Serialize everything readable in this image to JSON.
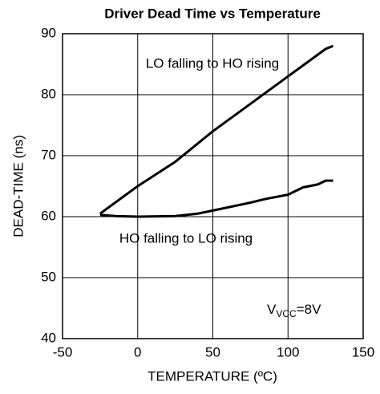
{
  "chart_data": {
    "type": "line",
    "title": "Driver Dead Time vs Temperature",
    "x_label": "TEMPERATURE (ºC)",
    "y_label": "DEAD-TIME (ns)",
    "xlim": [
      -50,
      150
    ],
    "xticks": [
      -50,
      0,
      50,
      100,
      150
    ],
    "ylim": [
      40,
      90
    ],
    "yticks": [
      40,
      50,
      60,
      70,
      80,
      90
    ],
    "grid": true,
    "series": [
      {
        "name": "LO falling to HO rising",
        "color": "#000000",
        "x": [
          -25,
          0,
          25,
          40,
          50,
          75,
          100,
          125,
          130
        ],
        "values": [
          60.5,
          65,
          69,
          72,
          74,
          78.5,
          83,
          87.5,
          88
        ]
      },
      {
        "name": "HO falling to LO rising",
        "color": "#000000",
        "x": [
          -25,
          -15,
          0,
          25,
          40,
          50,
          75,
          85,
          100,
          110,
          120,
          125,
          130
        ],
        "values": [
          60.3,
          60.1,
          60,
          60.1,
          60.5,
          61,
          62.3,
          62.9,
          63.6,
          64.8,
          65.3,
          65.9,
          65.9
        ]
      }
    ],
    "annotation": {
      "main": "V",
      "sub": "VCC",
      "rest": "=8V"
    }
  }
}
